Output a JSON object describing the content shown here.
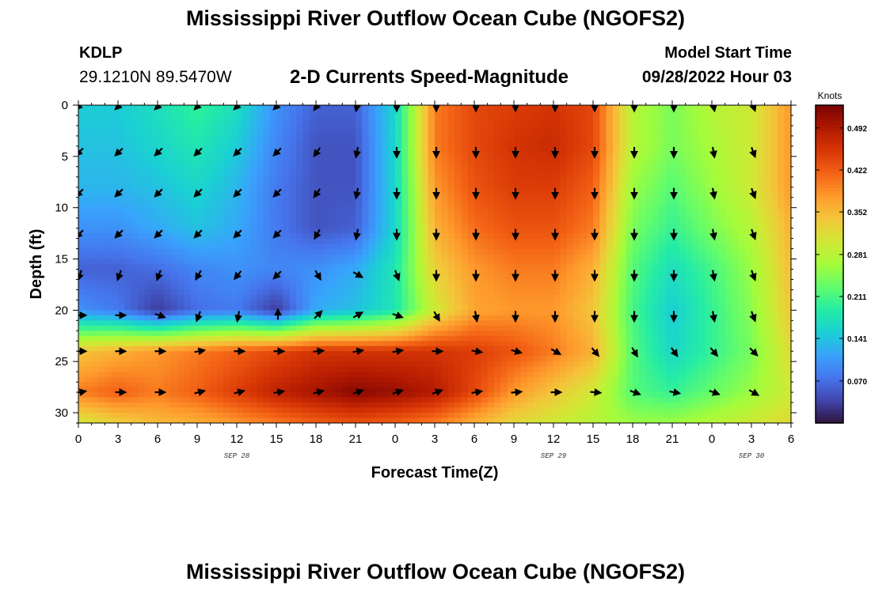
{
  "title": "Mississippi River Outflow Ocean Cube (NGOFS2)",
  "station": {
    "id": "KDLP",
    "coords": "29.1210N  89.5470W"
  },
  "subtitle": "2-D Currents Speed-Magnitude",
  "model_start": {
    "label": "Model Start Time",
    "value": "09/28/2022 Hour 03"
  },
  "bottom_title": "Mississippi River Outflow Ocean Cube (NGOFS2)",
  "chart_data": {
    "type": "heatmap",
    "xlabel": "Forecast Time(Z)",
    "ylabel": "Depth (ft)",
    "x_tick_labels": [
      "0",
      "3",
      "6",
      "9",
      "12",
      "15",
      "18",
      "21",
      "0",
      "3",
      "6",
      "9",
      "12",
      "15",
      "18",
      "21",
      "0",
      "3",
      "6"
    ],
    "date_labels": [
      {
        "text": "SEP 28",
        "hour": 12
      },
      {
        "text": "SEP 29",
        "hour": 36
      },
      {
        "text": "SEP 30",
        "hour": 51
      }
    ],
    "x_range_hours": [
      0,
      54
    ],
    "y_ticks": [
      0,
      5,
      10,
      15,
      20,
      25,
      30
    ],
    "y_range": [
      0,
      31
    ],
    "colorbar": {
      "unit": "Knots",
      "range": [
        0,
        0.53
      ],
      "ticks": [
        "0.070",
        "0.141",
        "0.211",
        "0.281",
        "0.352",
        "0.422",
        "0.492"
      ],
      "colors": [
        "#30123b",
        "#4145ab",
        "#4675ed",
        "#39a2fc",
        "#1bcfd4",
        "#24eca6",
        "#61fc6c",
        "#a4fc3b",
        "#d1e834",
        "#f3c63a",
        "#fe9b2d",
        "#f36315",
        "#d93806",
        "#b11901",
        "#7a0403"
      ]
    },
    "speed_depth_levels_ft": [
      0,
      4,
      8,
      12,
      16,
      20,
      24,
      28,
      31
    ],
    "speed_times_hours": [
      0,
      3,
      6,
      9,
      12,
      15,
      18,
      21,
      24,
      27,
      30,
      33,
      36,
      39,
      42,
      45,
      48,
      51,
      54
    ],
    "speed_knots": [
      [
        0.15,
        0.15,
        0.17,
        0.2,
        0.17,
        0.1,
        0.06,
        0.06,
        0.16,
        0.4,
        0.44,
        0.45,
        0.46,
        0.44,
        0.28,
        0.24,
        0.28,
        0.3,
        0.38
      ],
      [
        0.14,
        0.14,
        0.16,
        0.18,
        0.15,
        0.09,
        0.05,
        0.05,
        0.16,
        0.4,
        0.44,
        0.46,
        0.47,
        0.44,
        0.28,
        0.24,
        0.27,
        0.3,
        0.38
      ],
      [
        0.13,
        0.13,
        0.14,
        0.16,
        0.13,
        0.08,
        0.05,
        0.05,
        0.16,
        0.38,
        0.43,
        0.45,
        0.45,
        0.42,
        0.26,
        0.22,
        0.26,
        0.3,
        0.38
      ],
      [
        0.1,
        0.1,
        0.12,
        0.14,
        0.12,
        0.08,
        0.05,
        0.06,
        0.16,
        0.36,
        0.41,
        0.43,
        0.43,
        0.4,
        0.24,
        0.2,
        0.24,
        0.28,
        0.36
      ],
      [
        0.06,
        0.06,
        0.07,
        0.09,
        0.1,
        0.09,
        0.1,
        0.12,
        0.18,
        0.33,
        0.38,
        0.4,
        0.4,
        0.36,
        0.22,
        0.17,
        0.21,
        0.26,
        0.35
      ],
      [
        0.1,
        0.08,
        0.03,
        0.07,
        0.08,
        0.03,
        0.12,
        0.14,
        0.18,
        0.3,
        0.37,
        0.38,
        0.38,
        0.34,
        0.21,
        0.15,
        0.2,
        0.25,
        0.34
      ],
      [
        0.34,
        0.36,
        0.38,
        0.4,
        0.42,
        0.44,
        0.46,
        0.46,
        0.46,
        0.46,
        0.45,
        0.43,
        0.4,
        0.36,
        0.22,
        0.16,
        0.2,
        0.24,
        0.32
      ],
      [
        0.4,
        0.42,
        0.4,
        0.42,
        0.45,
        0.48,
        0.5,
        0.52,
        0.51,
        0.49,
        0.44,
        0.38,
        0.34,
        0.3,
        0.22,
        0.2,
        0.23,
        0.26,
        0.3
      ],
      [
        0.3,
        0.33,
        0.35,
        0.36,
        0.38,
        0.4,
        0.42,
        0.43,
        0.42,
        0.4,
        0.36,
        0.32,
        0.3,
        0.28,
        0.26,
        0.26,
        0.28,
        0.3,
        0.32
      ]
    ],
    "arrow_depths_ft": [
      0,
      4.5,
      8.5,
      12.5,
      16.5,
      20.5,
      24,
      28
    ],
    "arrow_times_hours": [
      0,
      3,
      6,
      9,
      12,
      15,
      18,
      21,
      24,
      27,
      30,
      33,
      36,
      39,
      42,
      45,
      48,
      51
    ],
    "arrow_direction_deg": [
      [
        225,
        225,
        225,
        225,
        225,
        225,
        215,
        190,
        180,
        180,
        180,
        180,
        180,
        180,
        180,
        180,
        170,
        160
      ],
      [
        225,
        225,
        225,
        225,
        225,
        225,
        215,
        190,
        180,
        180,
        180,
        180,
        180,
        180,
        180,
        180,
        170,
        160
      ],
      [
        225,
        225,
        225,
        225,
        225,
        225,
        215,
        190,
        180,
        180,
        180,
        180,
        180,
        180,
        180,
        180,
        170,
        160
      ],
      [
        225,
        225,
        225,
        225,
        225,
        225,
        210,
        190,
        180,
        180,
        180,
        180,
        180,
        180,
        180,
        180,
        170,
        160
      ],
      [
        200,
        200,
        200,
        210,
        220,
        225,
        150,
        120,
        160,
        180,
        180,
        180,
        180,
        180,
        180,
        180,
        170,
        160
      ],
      [
        90,
        90,
        110,
        200,
        190,
        0,
        45,
        60,
        110,
        150,
        170,
        180,
        180,
        180,
        180,
        180,
        170,
        160
      ],
      [
        90,
        90,
        90,
        80,
        90,
        90,
        85,
        80,
        80,
        90,
        100,
        105,
        120,
        140,
        150,
        145,
        140,
        135
      ],
      [
        80,
        90,
        90,
        75,
        75,
        80,
        75,
        70,
        70,
        70,
        80,
        85,
        90,
        95,
        110,
        100,
        110,
        120
      ]
    ]
  }
}
